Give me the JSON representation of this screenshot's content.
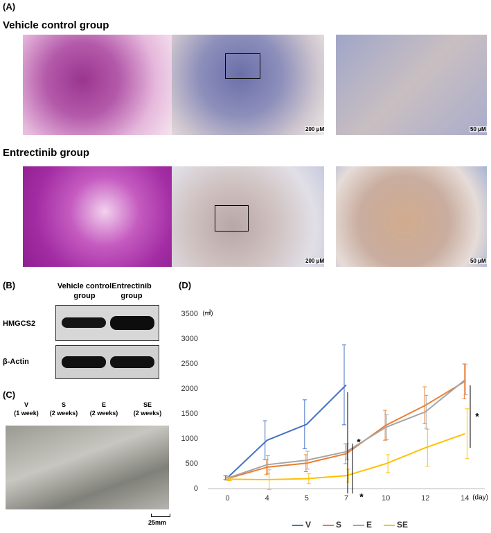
{
  "panel_a": {
    "label": "(A)",
    "groups": [
      "Vehicle control group",
      "Entrectinib group"
    ],
    "scale_bars": [
      "200 μM",
      "50 μM",
      "200 μM",
      "50 μM"
    ]
  },
  "panel_b": {
    "label": "(B)",
    "columns": [
      "Vehicle control group",
      "Entrectinib group"
    ],
    "rows": [
      "HMGCS2",
      "β-Actin"
    ]
  },
  "panel_c": {
    "label": "(C)",
    "groups": [
      {
        "name": "V",
        "duration": "(1 week)"
      },
      {
        "name": "S",
        "duration": "(2 weeks)"
      },
      {
        "name": "E",
        "duration": "(2 weeks)"
      },
      {
        "name": "SE",
        "duration": "(2 weeks)"
      }
    ],
    "scale_bar": "25mm"
  },
  "panel_d": {
    "label": "(D)"
  },
  "chart_data": {
    "type": "line",
    "y_label": "(㎣)",
    "x_label": "(day)",
    "categories": [
      "0",
      "4",
      "5",
      "7",
      "10",
      "12",
      "14"
    ],
    "ylim": [
      0,
      3500
    ],
    "yticks": [
      0,
      500,
      1000,
      1500,
      2000,
      2500,
      3000,
      3500
    ],
    "series": [
      {
        "name": "V",
        "color": "#4472c4",
        "values": [
          220,
          970,
          1290,
          2080,
          null,
          null,
          null
        ],
        "errors": [
          40,
          390,
          490,
          800,
          null,
          null,
          null
        ]
      },
      {
        "name": "S",
        "color": "#ed7d31",
        "values": [
          200,
          430,
          510,
          700,
          1270,
          1670,
          2150
        ],
        "errors": [
          30,
          150,
          170,
          200,
          300,
          370,
          350
        ]
      },
      {
        "name": "E",
        "color": "#a5a5a5",
        "values": [
          210,
          480,
          570,
          740,
          1230,
          1540,
          2180
        ],
        "errors": [
          30,
          180,
          180,
          160,
          250,
          330,
          300
        ]
      },
      {
        "name": "SE",
        "color": "#ffc000",
        "values": [
          190,
          180,
          200,
          260,
          500,
          820,
          1100
        ],
        "errors": [
          30,
          200,
          100,
          130,
          180,
          370,
          500
        ]
      }
    ],
    "annotations": [
      "*",
      "*",
      "*"
    ],
    "legend": "bottom"
  }
}
